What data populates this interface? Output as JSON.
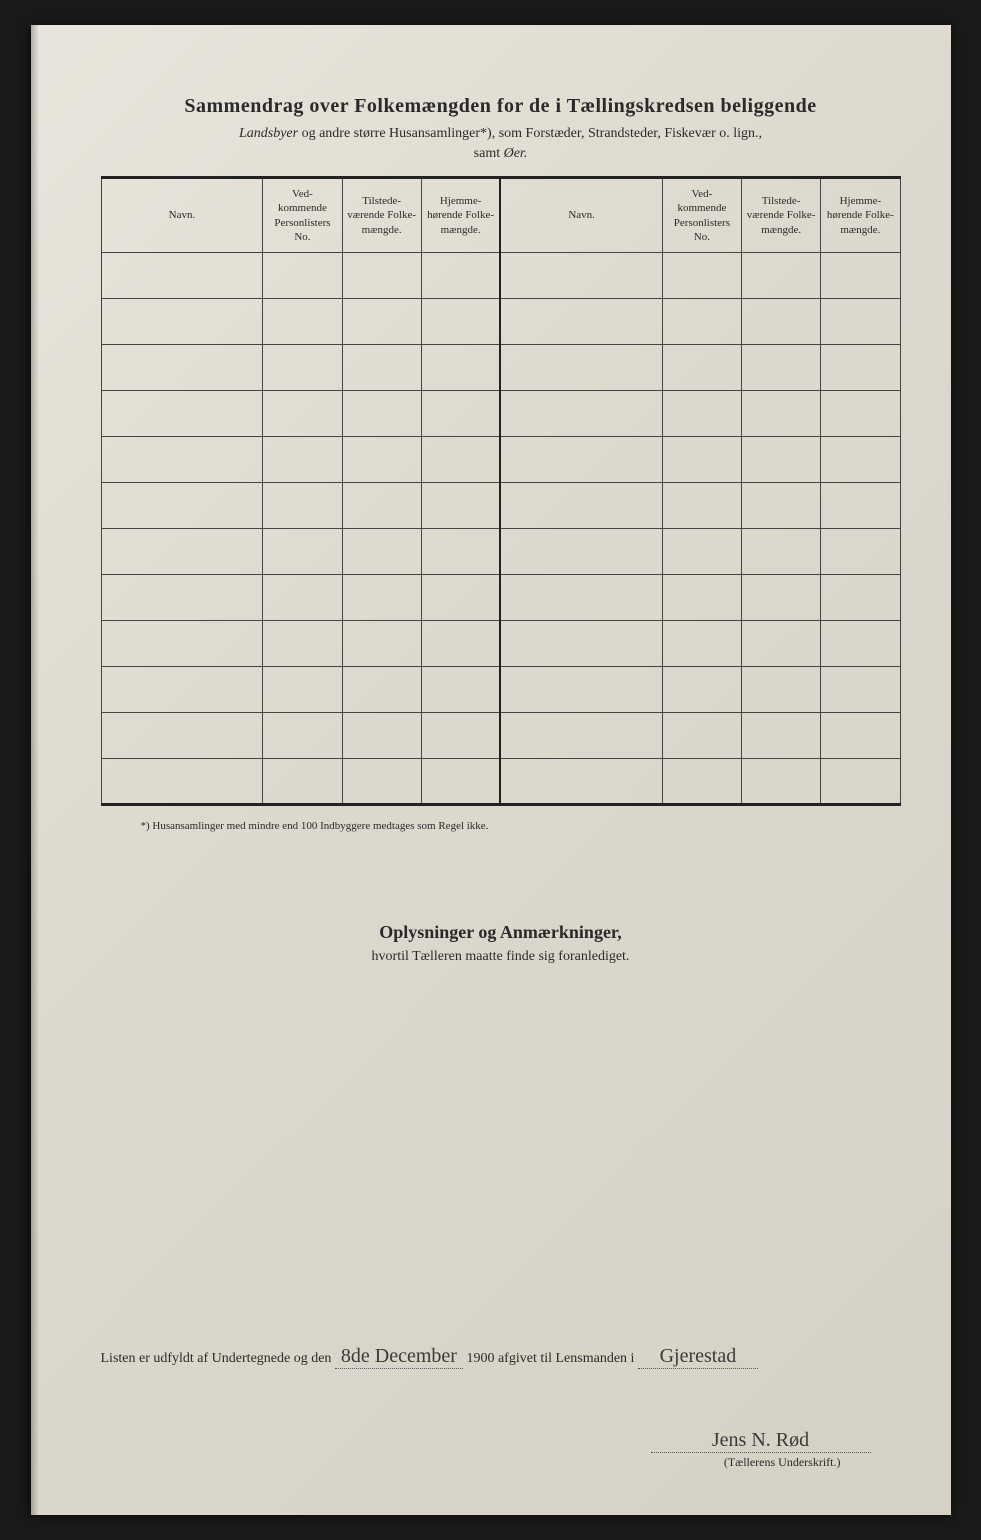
{
  "header": {
    "title": "Sammendrag over Folkemængden for de i Tællingskredsen beliggende",
    "subtitle_prefix_italic": "Landsbyer",
    "subtitle_rest": " og andre større Husansamlinger*), som Forstæder, Strandsteder, Fiskevær o. lign.,",
    "subtitle2_prefix": "samt ",
    "subtitle2_italic": "Øer."
  },
  "table": {
    "columns": {
      "navn": "Navn.",
      "personlister": "Ved-\nkommende\nPersonlisters\nNo.",
      "tilstede": "Tilstede-\nværende\nFolke-\nmængde.",
      "hjemme": "Hjemme-\nhørende\nFolke-\nmængde."
    },
    "row_count": 12
  },
  "footnote": "*)   Husansamlinger med mindre end 100 Indbyggere medtages som Regel ikke.",
  "section2": {
    "title": "Oplysninger og Anmærkninger,",
    "sub": "hvortil Tælleren maatte finde sig foranlediget."
  },
  "signature": {
    "line_prefix": "Listen er udfyldt af Undertegnede og den ",
    "date_hand": "8de December",
    "year": " 1900 afgivet til Lensmanden i ",
    "place_hand": "Gjerestad",
    "sig_hand": "Jens N. Rød",
    "caption": "(Tællerens Underskrift.)"
  },
  "colors": {
    "paper": "#ddd9ce",
    "ink": "#2a2a2a",
    "rule": "#222222"
  }
}
